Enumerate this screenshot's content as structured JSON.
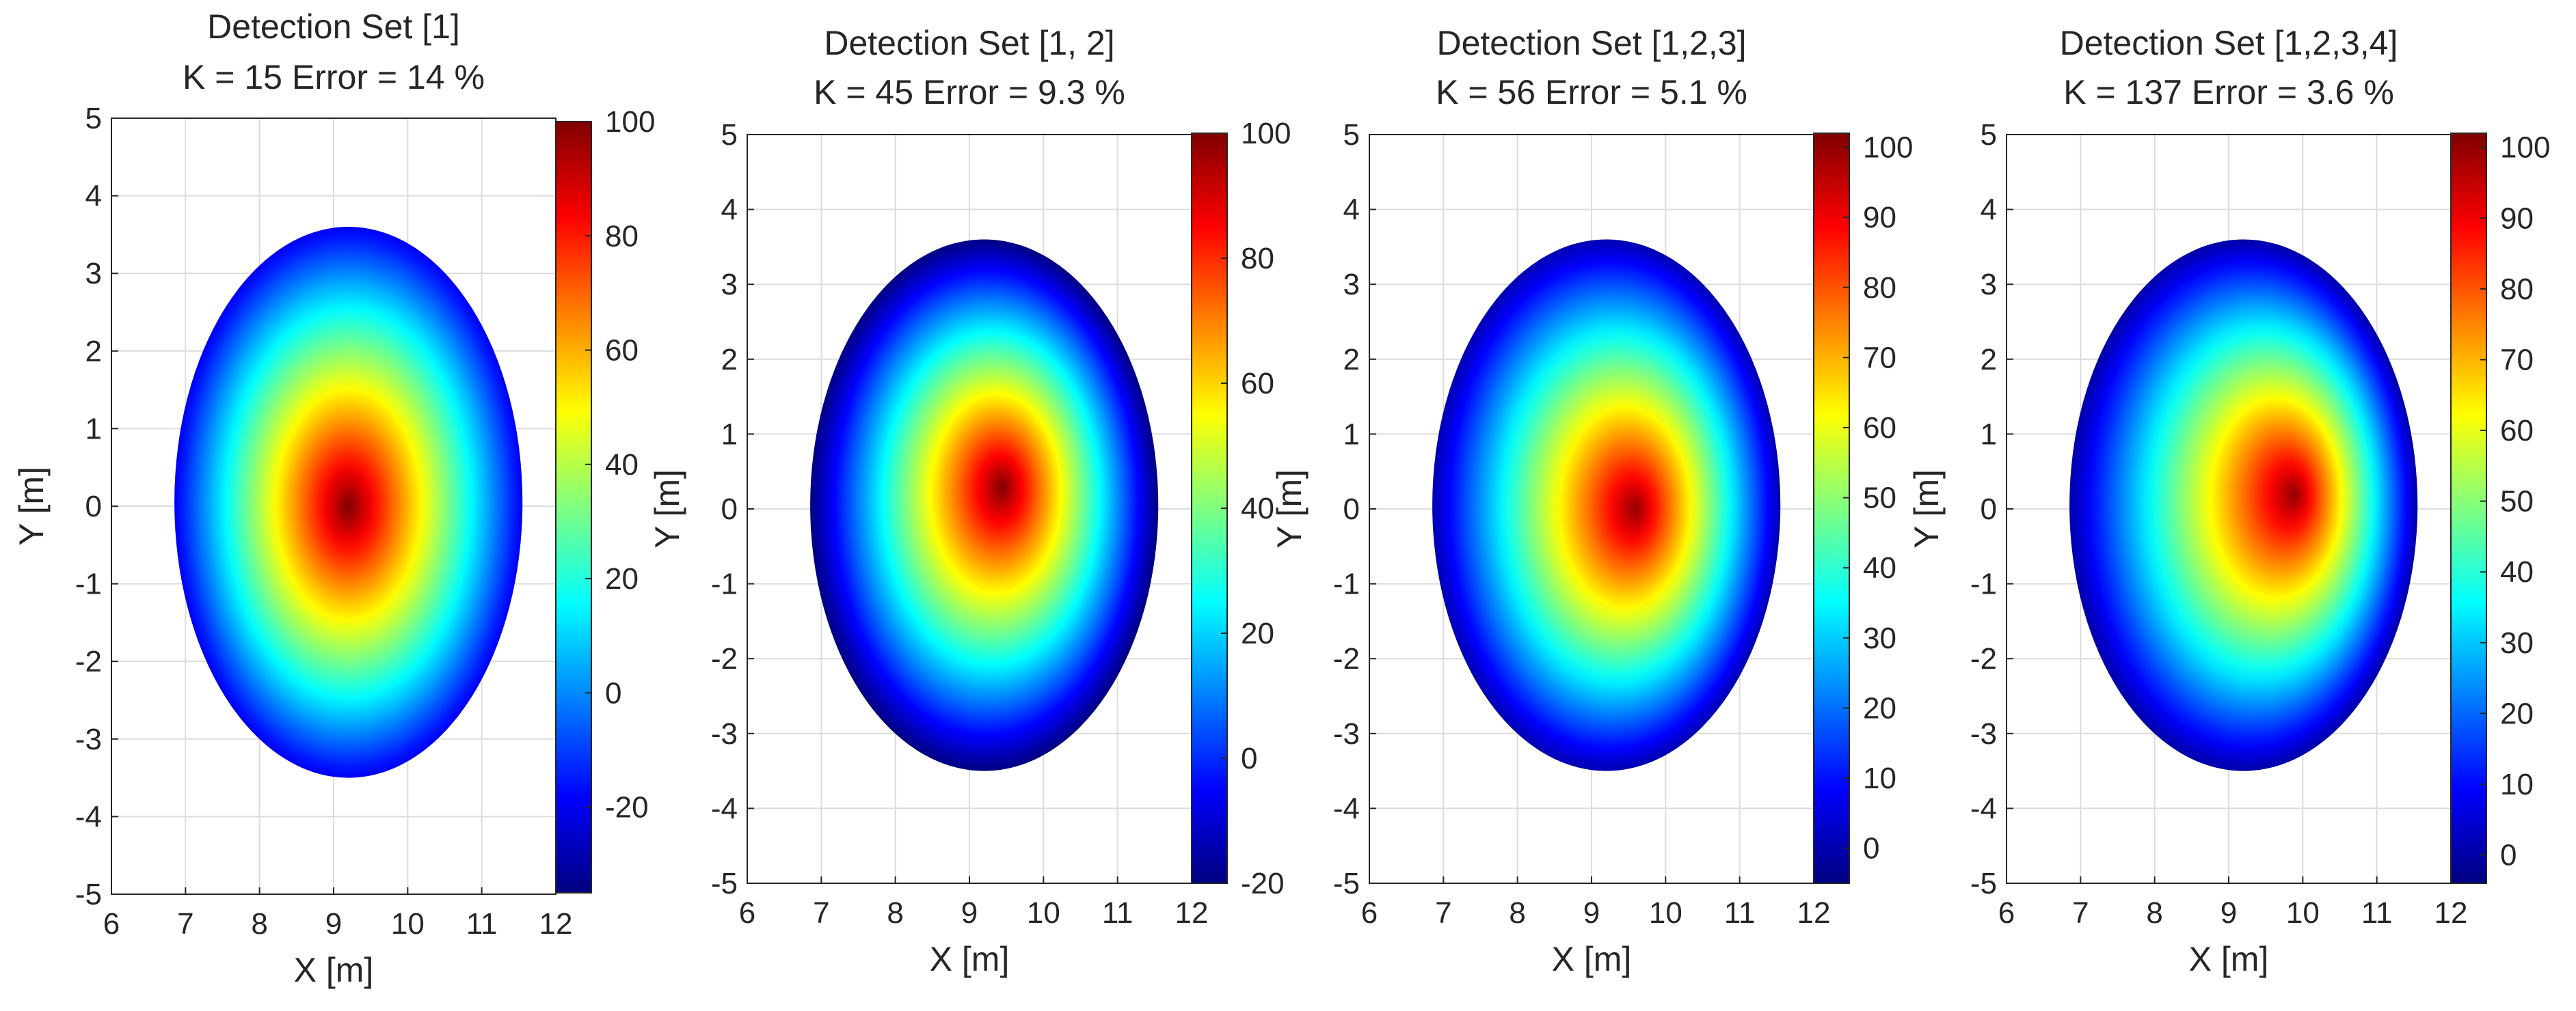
{
  "chart_data": [
    {
      "type": "heatmap",
      "title": "Detection Set [1]",
      "subtitle": "K = 15   Error = 14 %",
      "xlabel": "X [m]",
      "ylabel": "Y [m]",
      "xlim": [
        6,
        12
      ],
      "ylim": [
        -5,
        5
      ],
      "xticks": [
        "6",
        "7",
        "8",
        "9",
        "10",
        "11",
        "12"
      ],
      "yticks": [
        "-5",
        "-4",
        "-3",
        "-2",
        "-1",
        "0",
        "1",
        "2",
        "3",
        "4",
        "5"
      ],
      "grid": true,
      "colormap": "jet",
      "colorbar": {
        "min": -35,
        "max": 100,
        "ticks": [
          "-20",
          "0",
          "20",
          "40",
          "60",
          "80",
          "100"
        ],
        "tick_values": [
          -20,
          0,
          20,
          40,
          60,
          80,
          100
        ]
      },
      "region": {
        "x_min": 6.85,
        "x_max": 11.55,
        "y_min": -3.5,
        "y_max": 3.6
      },
      "peak": {
        "x": 9.2,
        "y": 0.0,
        "value": 100
      },
      "edge_value": -20
    },
    {
      "type": "heatmap",
      "title": "Detection Set [1, 2]",
      "subtitle": "K = 45   Error = 9.3 %",
      "xlabel": "X [m]",
      "ylabel": "Y [m]",
      "xlim": [
        6,
        12
      ],
      "ylim": [
        -5,
        5
      ],
      "xticks": [
        "6",
        "7",
        "8",
        "9",
        "10",
        "11",
        "12"
      ],
      "yticks": [
        "-5",
        "-4",
        "-3",
        "-2",
        "-1",
        "0",
        "1",
        "2",
        "3",
        "4",
        "5"
      ],
      "grid": true,
      "colormap": "jet",
      "colorbar": {
        "min": -20,
        "max": 100,
        "ticks": [
          "-20",
          "0",
          "20",
          "40",
          "60",
          "80",
          "100"
        ],
        "tick_values": [
          -20,
          0,
          20,
          40,
          60,
          80,
          100
        ]
      },
      "region": {
        "x_min": 6.85,
        "x_max": 11.55,
        "y_min": -3.5,
        "y_max": 3.6
      },
      "peak": {
        "x": 9.45,
        "y": 0.3,
        "value": 100
      },
      "edge_value": -20
    },
    {
      "type": "heatmap",
      "title": "Detection Set  [1,2,3]",
      "subtitle": "K = 56   Error = 5.1 %",
      "xlabel": "X [m]",
      "ylabel": "Y [m]",
      "xlim": [
        6,
        12
      ],
      "ylim": [
        -5,
        5
      ],
      "xticks": [
        "6",
        "7",
        "8",
        "9",
        "10",
        "11",
        "12"
      ],
      "yticks": [
        "-5",
        "-4",
        "-3",
        "-2",
        "-1",
        "0",
        "1",
        "2",
        "3",
        "4",
        "5"
      ],
      "grid": true,
      "colormap": "jet",
      "colorbar": {
        "min": -5,
        "max": 102,
        "ticks": [
          "0",
          "10",
          "20",
          "30",
          "40",
          "50",
          "60",
          "70",
          "80",
          "90",
          "100"
        ],
        "tick_values": [
          0,
          10,
          20,
          30,
          40,
          50,
          60,
          70,
          80,
          90,
          100
        ]
      },
      "region": {
        "x_min": 6.85,
        "x_max": 11.55,
        "y_min": -3.5,
        "y_max": 3.6
      },
      "peak": {
        "x": 9.6,
        "y": 0.0,
        "value": 100
      },
      "edge_value": 0
    },
    {
      "type": "heatmap",
      "title": "Detection Set [1,2,3,4]",
      "subtitle": "K = 137   Error = 3.6 %",
      "xlabel": "X [m]",
      "ylabel": "Y [m]",
      "xlim": [
        6,
        12
      ],
      "ylim": [
        -5,
        5
      ],
      "xticks": [
        "6",
        "7",
        "8",
        "9",
        "10",
        "11",
        "12"
      ],
      "yticks": [
        "-5",
        "-4",
        "-3",
        "-2",
        "-1",
        "0",
        "1",
        "2",
        "3",
        "4",
        "5"
      ],
      "grid": true,
      "colormap": "jet",
      "colorbar": {
        "min": -4,
        "max": 102,
        "ticks": [
          "0",
          "10",
          "20",
          "30",
          "40",
          "50",
          "60",
          "70",
          "80",
          "90",
          "100"
        ],
        "tick_values": [
          0,
          10,
          20,
          30,
          40,
          50,
          60,
          70,
          80,
          90,
          100
        ]
      },
      "region": {
        "x_min": 6.85,
        "x_max": 11.55,
        "y_min": -3.5,
        "y_max": 3.6
      },
      "peak": {
        "x": 9.9,
        "y": 0.2,
        "value": 100
      },
      "edge_value": 0
    }
  ]
}
